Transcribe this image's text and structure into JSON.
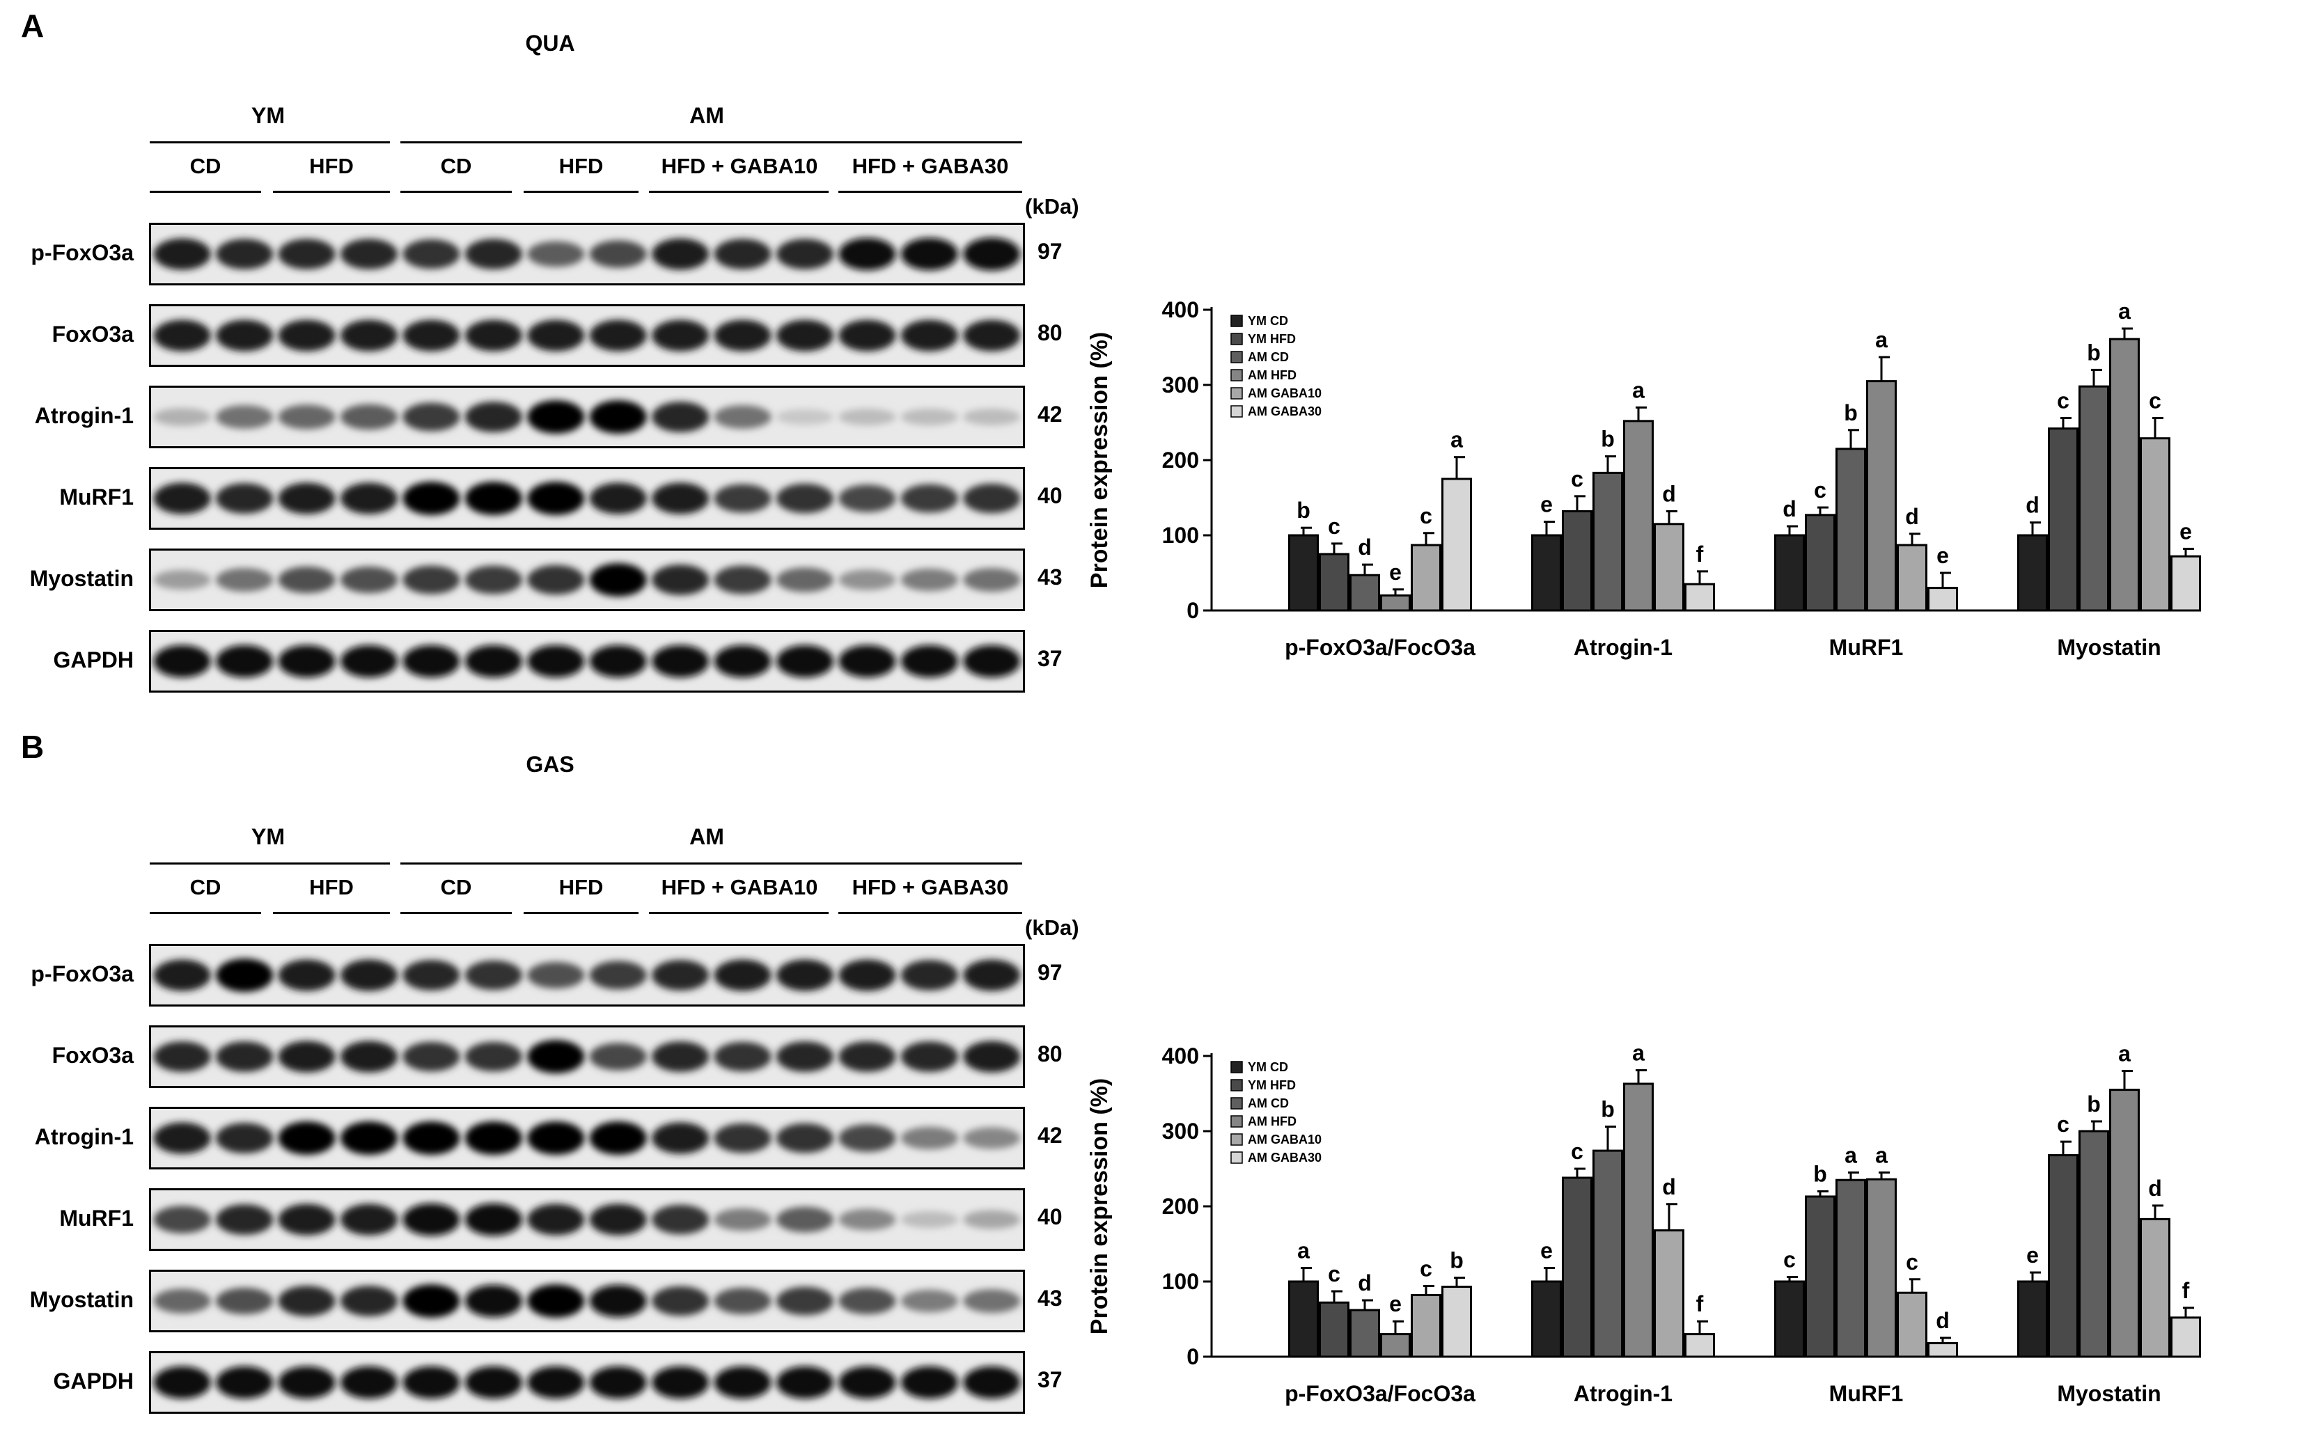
{
  "panels": [
    {
      "letter": "A",
      "tissue": "QUA",
      "groups": [
        "YM",
        "AM"
      ],
      "diets": [
        "CD",
        "HFD",
        "CD",
        "HFD",
        "HFD + GABA10",
        "HFD + GABA30"
      ],
      "kda_label": "(kDa)",
      "bands": [
        {
          "label": "p-FoxO3a",
          "mw": "97"
        },
        {
          "label": "FoxO3a",
          "mw": "80"
        },
        {
          "label": "Atrogin-1",
          "mw": "42"
        },
        {
          "label": "MuRF1",
          "mw": "40"
        },
        {
          "label": "Myostatin",
          "mw": "43"
        },
        {
          "label": "GAPDH",
          "mw": "37"
        }
      ],
      "blot_intensity": [
        [
          0.9,
          0.85,
          0.85,
          0.85,
          0.8,
          0.85,
          0.6,
          0.7,
          0.9,
          0.85,
          0.85,
          0.95,
          0.95,
          0.98
        ],
        [
          0.9,
          0.9,
          0.9,
          0.9,
          0.9,
          0.9,
          0.9,
          0.9,
          0.9,
          0.9,
          0.9,
          0.9,
          0.9,
          0.9
        ],
        [
          0.2,
          0.5,
          0.55,
          0.6,
          0.75,
          0.85,
          1.0,
          1.0,
          0.85,
          0.5,
          0.1,
          0.15,
          0.15,
          0.15
        ],
        [
          0.9,
          0.85,
          0.9,
          0.9,
          1.0,
          1.0,
          1.0,
          0.9,
          0.9,
          0.75,
          0.8,
          0.7,
          0.75,
          0.8
        ],
        [
          0.3,
          0.5,
          0.65,
          0.65,
          0.75,
          0.75,
          0.8,
          1.0,
          0.85,
          0.75,
          0.55,
          0.35,
          0.45,
          0.5
        ],
        [
          0.95,
          0.95,
          0.95,
          0.95,
          0.95,
          0.95,
          0.95,
          0.95,
          0.95,
          0.95,
          0.95,
          0.95,
          0.95,
          0.95
        ]
      ],
      "chart_data": {
        "type": "bar",
        "title": "",
        "xlabel": "",
        "ylabel": "Protein expression (%)",
        "ylim": [
          0,
          400
        ],
        "yticks": [
          "0",
          "100",
          "200",
          "300",
          "400"
        ],
        "categories": [
          "p-FoxO3a/FocO3a",
          "Atrogin-1",
          "MuRF1",
          "Myostatin"
        ],
        "legend_position": "top-left",
        "series": [
          {
            "name": "YM CD",
            "color": "#222222",
            "values": [
              100,
              100,
              100,
              100
            ],
            "errors": [
              10,
              18,
              12,
              17
            ],
            "letters": [
              "b",
              "e",
              "d",
              "d"
            ]
          },
          {
            "name": "YM HFD",
            "color": "#4a4a4a",
            "values": [
              75,
              132,
              127,
              242
            ],
            "errors": [
              14,
              20,
              10,
              14
            ],
            "letters": [
              "c",
              "c",
              "c",
              "c"
            ]
          },
          {
            "name": "AM CD",
            "color": "#5f5f5f",
            "values": [
              47,
              183,
              215,
              298
            ],
            "errors": [
              14,
              22,
              25,
              22
            ],
            "letters": [
              "d",
              "b",
              "b",
              "b"
            ]
          },
          {
            "name": "AM HFD",
            "color": "#858585",
            "values": [
              20,
              252,
              305,
              361
            ],
            "errors": [
              8,
              18,
              32,
              14
            ],
            "letters": [
              "e",
              "a",
              "a",
              "a"
            ]
          },
          {
            "name": "AM GABA10",
            "color": "#a8a8a8",
            "values": [
              87,
              115,
              87,
              229
            ],
            "errors": [
              16,
              17,
              15,
              27
            ],
            "letters": [
              "c",
              "d",
              "d",
              "c"
            ]
          },
          {
            "name": "AM GABA30",
            "color": "#d6d6d6",
            "values": [
              175,
              35,
              30,
              72
            ],
            "errors": [
              29,
              17,
              20,
              10
            ],
            "letters": [
              "a",
              "f",
              "e",
              "e"
            ]
          }
        ]
      }
    },
    {
      "letter": "B",
      "tissue": "GAS",
      "groups": [
        "YM",
        "AM"
      ],
      "diets": [
        "CD",
        "HFD",
        "CD",
        "HFD",
        "HFD + GABA10",
        "HFD + GABA30"
      ],
      "kda_label": "(kDa)",
      "bands": [
        {
          "label": "p-FoxO3a",
          "mw": "97"
        },
        {
          "label": "FoxO3a",
          "mw": "80"
        },
        {
          "label": "Atrogin-1",
          "mw": "42"
        },
        {
          "label": "MuRF1",
          "mw": "40"
        },
        {
          "label": "Myostatin",
          "mw": "43"
        },
        {
          "label": "GAPDH",
          "mw": "37"
        }
      ],
      "blot_intensity": [
        [
          0.9,
          1.0,
          0.9,
          0.9,
          0.85,
          0.8,
          0.65,
          0.75,
          0.85,
          0.9,
          0.9,
          0.9,
          0.85,
          0.9
        ],
        [
          0.85,
          0.85,
          0.9,
          0.9,
          0.8,
          0.8,
          1.0,
          0.7,
          0.85,
          0.8,
          0.85,
          0.85,
          0.85,
          0.9
        ],
        [
          0.9,
          0.85,
          1.0,
          1.0,
          1.0,
          1.0,
          1.0,
          1.0,
          0.9,
          0.8,
          0.8,
          0.7,
          0.45,
          0.4
        ],
        [
          0.7,
          0.85,
          0.9,
          0.9,
          0.95,
          0.95,
          0.9,
          0.9,
          0.8,
          0.45,
          0.6,
          0.4,
          0.15,
          0.25
        ],
        [
          0.55,
          0.65,
          0.85,
          0.85,
          1.0,
          0.95,
          1.0,
          0.95,
          0.8,
          0.65,
          0.75,
          0.65,
          0.45,
          0.5
        ],
        [
          0.95,
          0.95,
          0.95,
          0.95,
          0.95,
          0.95,
          0.95,
          0.95,
          0.95,
          0.95,
          0.95,
          0.95,
          0.95,
          0.95
        ]
      ],
      "chart_data": {
        "type": "bar",
        "title": "",
        "xlabel": "",
        "ylabel": "Protein expression (%)",
        "ylim": [
          0,
          400
        ],
        "yticks": [
          "0",
          "100",
          "200",
          "300",
          "400"
        ],
        "categories": [
          "p-FoxO3a/FocO3a",
          "Atrogin-1",
          "MuRF1",
          "Myostatin"
        ],
        "legend_position": "top-left",
        "series": [
          {
            "name": "YM CD",
            "color": "#222222",
            "values": [
              100,
              100,
              100,
              100
            ],
            "errors": [
              18,
              18,
              6,
              12
            ],
            "letters": [
              "a",
              "e",
              "c",
              "e"
            ]
          },
          {
            "name": "YM HFD",
            "color": "#4a4a4a",
            "values": [
              72,
              238,
              213,
              268
            ],
            "errors": [
              15,
              12,
              7,
              18
            ],
            "letters": [
              "c",
              "c",
              "b",
              "c"
            ]
          },
          {
            "name": "AM CD",
            "color": "#5f5f5f",
            "values": [
              62,
              274,
              235,
              300
            ],
            "errors": [
              13,
              32,
              10,
              13
            ],
            "letters": [
              "d",
              "b",
              "a",
              "b"
            ]
          },
          {
            "name": "AM HFD",
            "color": "#858585",
            "values": [
              30,
              363,
              236,
              355
            ],
            "errors": [
              17,
              18,
              9,
              25
            ],
            "letters": [
              "e",
              "a",
              "a",
              "a"
            ]
          },
          {
            "name": "AM GABA10",
            "color": "#a8a8a8",
            "values": [
              82,
              168,
              85,
              183
            ],
            "errors": [
              12,
              35,
              18,
              18
            ],
            "letters": [
              "c",
              "d",
              "c",
              "d"
            ]
          },
          {
            "name": "AM GABA30",
            "color": "#d6d6d6",
            "values": [
              93,
              30,
              18,
              52
            ],
            "errors": [
              12,
              17,
              7,
              13
            ],
            "letters": [
              "b",
              "f",
              "d",
              "f"
            ]
          }
        ]
      }
    }
  ]
}
